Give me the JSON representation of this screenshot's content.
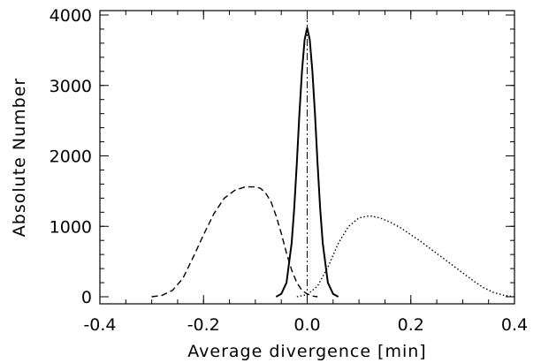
{
  "chart_data": {
    "type": "line",
    "xlabel": "Average divergence [min]",
    "ylabel": "Absolute Number",
    "xlim": [
      -0.4,
      0.4
    ],
    "ylim": [
      0,
      4000
    ],
    "xticks": [
      "-0.4",
      "-0.2",
      "0.0",
      "0.2",
      "0.4"
    ],
    "xtick_values": [
      -0.4,
      -0.2,
      0.0,
      0.2,
      0.4
    ],
    "yticks": [
      "0",
      "1000",
      "2000",
      "3000",
      "4000"
    ],
    "ytick_values": [
      0,
      1000,
      2000,
      3000,
      4000
    ],
    "grid": false,
    "legend": "none",
    "vertical_reference_x": 0.0,
    "series": [
      {
        "style": "dashed",
        "x": [
          -0.3,
          -0.28,
          -0.26,
          -0.24,
          -0.22,
          -0.2,
          -0.18,
          -0.16,
          -0.14,
          -0.12,
          -0.1,
          -0.09,
          -0.08,
          -0.07,
          -0.06,
          -0.05,
          -0.04,
          -0.03,
          -0.02,
          -0.01,
          0.0,
          0.01,
          0.02
        ],
        "y": [
          0,
          20,
          90,
          260,
          560,
          880,
          1180,
          1400,
          1510,
          1560,
          1560,
          1540,
          1470,
          1350,
          1150,
          900,
          620,
          380,
          200,
          90,
          40,
          10,
          0
        ]
      },
      {
        "style": "solid",
        "x": [
          -0.06,
          -0.05,
          -0.04,
          -0.03,
          -0.025,
          -0.02,
          -0.015,
          -0.01,
          -0.005,
          0.0,
          0.005,
          0.01,
          0.015,
          0.02,
          0.025,
          0.03,
          0.04,
          0.05,
          0.06
        ],
        "y": [
          0,
          40,
          200,
          760,
          1250,
          1900,
          2600,
          3200,
          3650,
          3820,
          3650,
          3200,
          2600,
          1900,
          1250,
          760,
          200,
          40,
          0
        ]
      },
      {
        "style": "dotted",
        "x": [
          -0.02,
          0.0,
          0.02,
          0.04,
          0.06,
          0.08,
          0.1,
          0.12,
          0.14,
          0.16,
          0.18,
          0.2,
          0.22,
          0.24,
          0.26,
          0.28,
          0.3,
          0.32,
          0.34,
          0.36,
          0.38,
          0.4
        ],
        "y": [
          0,
          30,
          150,
          420,
          760,
          1000,
          1120,
          1150,
          1120,
          1060,
          980,
          880,
          780,
          670,
          560,
          450,
          340,
          230,
          130,
          60,
          20,
          0
        ]
      }
    ]
  }
}
